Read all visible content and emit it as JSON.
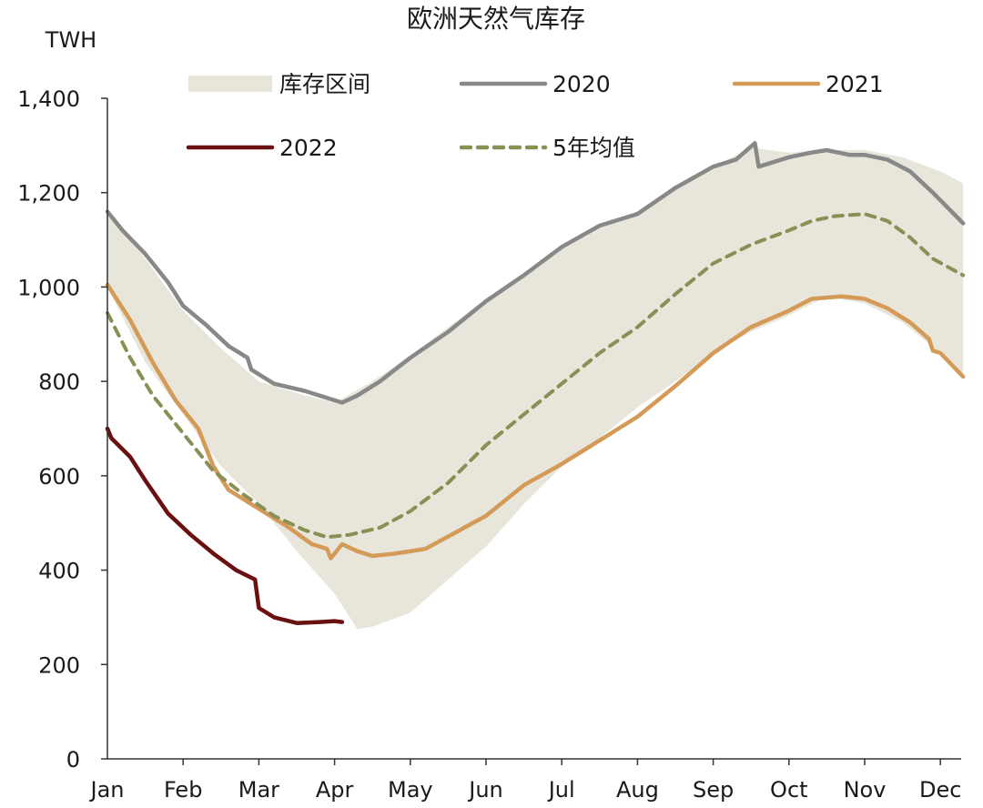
{
  "chart_data": {
    "type": "line",
    "title": "欧洲天然气库存",
    "unit_label": "TWH",
    "xlabel": "",
    "ylabel": "",
    "ylim": [
      0,
      1400
    ],
    "yticks": [
      "0",
      "200",
      "400",
      "600",
      "800",
      "1,000",
      "1,200",
      "1,400"
    ],
    "ytick_values": [
      0,
      200,
      400,
      600,
      800,
      1000,
      1200,
      1400
    ],
    "months": [
      "Jan",
      "Feb",
      "Mar",
      "Apr",
      "May",
      "Jun",
      "Jul",
      "Aug",
      "Sep",
      "Oct",
      "Nov",
      "Dec"
    ],
    "x_unit": "month index (0 = start of Jan, 11 = start of Dec)",
    "grid": false,
    "legend_position": "top",
    "band": {
      "name": "库存区间",
      "color": "#e8e6da",
      "upper": [
        [
          0,
          1160
        ],
        [
          0.5,
          1060
        ],
        [
          1,
          950
        ],
        [
          1.5,
          870
        ],
        [
          2,
          800
        ],
        [
          2.5,
          775
        ],
        [
          3,
          755
        ],
        [
          3.5,
          800
        ],
        [
          4,
          855
        ],
        [
          4.5,
          915
        ],
        [
          5,
          975
        ],
        [
          5.5,
          1030
        ],
        [
          6,
          1090
        ],
        [
          6.5,
          1130
        ],
        [
          7,
          1160
        ],
        [
          7.5,
          1210
        ],
        [
          8,
          1255
        ],
        [
          8.5,
          1295
        ],
        [
          9,
          1285
        ],
        [
          9.5,
          1290
        ],
        [
          10,
          1290
        ],
        [
          10.5,
          1275
        ],
        [
          11,
          1245
        ],
        [
          11.3,
          1220
        ]
      ],
      "lower": [
        [
          0,
          1000
        ],
        [
          0.5,
          840
        ],
        [
          1,
          730
        ],
        [
          1.5,
          620
        ],
        [
          2,
          540
        ],
        [
          2.5,
          440
        ],
        [
          3,
          350
        ],
        [
          3.3,
          275
        ],
        [
          3.5,
          280
        ],
        [
          4,
          310
        ],
        [
          4.5,
          380
        ],
        [
          5,
          450
        ],
        [
          5.5,
          540
        ],
        [
          6,
          620
        ],
        [
          6.5,
          680
        ],
        [
          7,
          745
        ],
        [
          7.5,
          800
        ],
        [
          8,
          860
        ],
        [
          8.5,
          905
        ],
        [
          9,
          940
        ],
        [
          9.5,
          980
        ],
        [
          10,
          965
        ],
        [
          10.5,
          925
        ],
        [
          11,
          860
        ],
        [
          11.3,
          810
        ]
      ]
    },
    "series": [
      {
        "name": "2020",
        "color": "#888888",
        "dash": "",
        "values": [
          [
            0,
            1160
          ],
          [
            0.2,
            1120
          ],
          [
            0.5,
            1070
          ],
          [
            0.8,
            1010
          ],
          [
            1,
            960
          ],
          [
            1.3,
            920
          ],
          [
            1.6,
            875
          ],
          [
            1.85,
            850
          ],
          [
            1.9,
            825
          ],
          [
            2.2,
            795
          ],
          [
            2.6,
            780
          ],
          [
            2.9,
            765
          ],
          [
            3.1,
            755
          ],
          [
            3.3,
            770
          ],
          [
            3.6,
            800
          ],
          [
            4,
            850
          ],
          [
            4.5,
            905
          ],
          [
            5,
            970
          ],
          [
            5.5,
            1025
          ],
          [
            6,
            1085
          ],
          [
            6.5,
            1130
          ],
          [
            7,
            1155
          ],
          [
            7.5,
            1210
          ],
          [
            8,
            1255
          ],
          [
            8.3,
            1270
          ],
          [
            8.55,
            1305
          ],
          [
            8.6,
            1255
          ],
          [
            9,
            1275
          ],
          [
            9.3,
            1285
          ],
          [
            9.5,
            1290
          ],
          [
            9.8,
            1280
          ],
          [
            10,
            1280
          ],
          [
            10.3,
            1270
          ],
          [
            10.6,
            1245
          ],
          [
            10.9,
            1200
          ],
          [
            11.3,
            1135
          ]
        ]
      },
      {
        "name": "2021",
        "color": "#d49a58",
        "dash": "",
        "values": [
          [
            0,
            1005
          ],
          [
            0.3,
            930
          ],
          [
            0.6,
            840
          ],
          [
            0.9,
            760
          ],
          [
            1.2,
            700
          ],
          [
            1.4,
            620
          ],
          [
            1.6,
            570
          ],
          [
            1.9,
            540
          ],
          [
            2.1,
            520
          ],
          [
            2.4,
            490
          ],
          [
            2.7,
            455
          ],
          [
            2.9,
            445
          ],
          [
            2.95,
            425
          ],
          [
            3.1,
            455
          ],
          [
            3.3,
            440
          ],
          [
            3.5,
            430
          ],
          [
            3.8,
            435
          ],
          [
            4.2,
            445
          ],
          [
            4.6,
            480
          ],
          [
            5,
            515
          ],
          [
            5.5,
            580
          ],
          [
            6,
            625
          ],
          [
            6.5,
            675
          ],
          [
            7,
            725
          ],
          [
            7.5,
            790
          ],
          [
            8,
            860
          ],
          [
            8.5,
            915
          ],
          [
            9,
            950
          ],
          [
            9.3,
            975
          ],
          [
            9.7,
            980
          ],
          [
            10,
            975
          ],
          [
            10.3,
            955
          ],
          [
            10.6,
            925
          ],
          [
            10.85,
            890
          ],
          [
            10.9,
            865
          ],
          [
            11,
            860
          ],
          [
            11.3,
            810
          ]
        ]
      },
      {
        "name": "2022",
        "color": "#6b1010",
        "dash": "",
        "values": [
          [
            0,
            700
          ],
          [
            0.05,
            680
          ],
          [
            0.3,
            640
          ],
          [
            0.5,
            590
          ],
          [
            0.8,
            520
          ],
          [
            1.1,
            475
          ],
          [
            1.4,
            435
          ],
          [
            1.7,
            400
          ],
          [
            1.95,
            380
          ],
          [
            2,
            320
          ],
          [
            2.2,
            300
          ],
          [
            2.5,
            288
          ],
          [
            2.8,
            290
          ],
          [
            3.0,
            292
          ],
          [
            3.1,
            290
          ]
        ]
      },
      {
        "name": "5年均值",
        "color": "#8a8f55",
        "dash": "10 8",
        "values": [
          [
            0,
            945
          ],
          [
            0.3,
            850
          ],
          [
            0.6,
            770
          ],
          [
            1,
            690
          ],
          [
            1.4,
            610
          ],
          [
            1.8,
            560
          ],
          [
            2.2,
            515
          ],
          [
            2.6,
            485
          ],
          [
            2.9,
            470
          ],
          [
            3.2,
            475
          ],
          [
            3.6,
            490
          ],
          [
            4,
            525
          ],
          [
            4.5,
            585
          ],
          [
            5,
            665
          ],
          [
            5.5,
            730
          ],
          [
            6,
            795
          ],
          [
            6.5,
            860
          ],
          [
            7,
            915
          ],
          [
            7.5,
            985
          ],
          [
            8,
            1050
          ],
          [
            8.5,
            1090
          ],
          [
            9,
            1120
          ],
          [
            9.3,
            1140
          ],
          [
            9.6,
            1150
          ],
          [
            10,
            1155
          ],
          [
            10.3,
            1140
          ],
          [
            10.6,
            1105
          ],
          [
            10.9,
            1060
          ],
          [
            11.3,
            1025
          ]
        ]
      }
    ],
    "legend": [
      {
        "name": "库存区间",
        "kind": "band",
        "color": "#e8e6da"
      },
      {
        "name": "2020",
        "kind": "line",
        "color": "#888888"
      },
      {
        "name": "2021",
        "kind": "line",
        "color": "#d49a58"
      },
      {
        "name": "2022",
        "kind": "line",
        "color": "#6b1010"
      },
      {
        "name": "5年均值",
        "kind": "dashed",
        "color": "#8a8f55"
      }
    ]
  }
}
